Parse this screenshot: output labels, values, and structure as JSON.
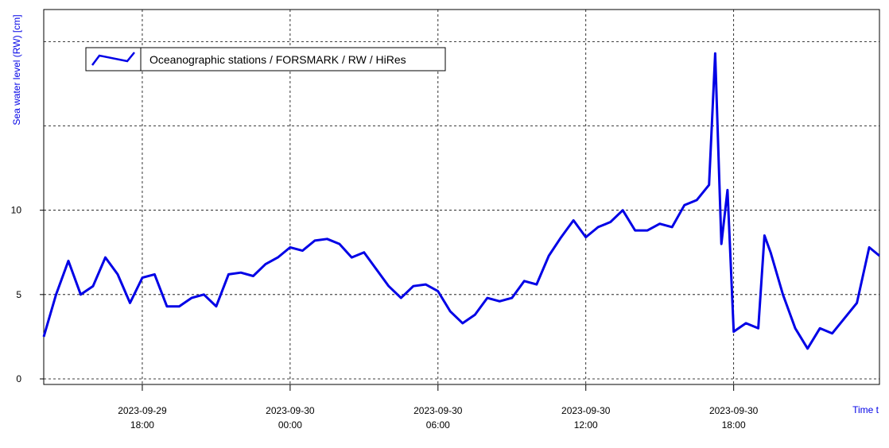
{
  "chart_data": {
    "type": "line",
    "y_label": "Sea water level (RW) [cm]",
    "x_label": "Time t",
    "x": [
      "2023-09-29 14:00",
      "2023-09-29 14:30",
      "2023-09-29 15:00",
      "2023-09-29 15:30",
      "2023-09-29 16:00",
      "2023-09-29 16:30",
      "2023-09-29 17:00",
      "2023-09-29 17:30",
      "2023-09-29 18:00",
      "2023-09-29 18:30",
      "2023-09-29 19:00",
      "2023-09-29 19:30",
      "2023-09-29 20:00",
      "2023-09-29 20:30",
      "2023-09-29 21:00",
      "2023-09-29 21:30",
      "2023-09-29 22:00",
      "2023-09-29 22:30",
      "2023-09-29 23:00",
      "2023-09-29 23:30",
      "2023-09-30 00:00",
      "2023-09-30 00:30",
      "2023-09-30 01:00",
      "2023-09-30 01:30",
      "2023-09-30 02:00",
      "2023-09-30 02:30",
      "2023-09-30 03:00",
      "2023-09-30 03:30",
      "2023-09-30 04:00",
      "2023-09-30 04:30",
      "2023-09-30 05:00",
      "2023-09-30 05:30",
      "2023-09-30 06:00",
      "2023-09-30 06:30",
      "2023-09-30 07:00",
      "2023-09-30 07:30",
      "2023-09-30 08:00",
      "2023-09-30 08:30",
      "2023-09-30 09:00",
      "2023-09-30 09:30",
      "2023-09-30 10:00",
      "2023-09-30 10:30",
      "2023-09-30 11:00",
      "2023-09-30 11:30",
      "2023-09-30 12:00",
      "2023-09-30 12:30",
      "2023-09-30 13:00",
      "2023-09-30 13:30",
      "2023-09-30 14:00",
      "2023-09-30 14:30",
      "2023-09-30 15:00",
      "2023-09-30 15:30",
      "2023-09-30 16:00",
      "2023-09-30 16:30",
      "2023-09-30 17:00",
      "2023-09-30 17:15",
      "2023-09-30 17:30",
      "2023-09-30 17:45",
      "2023-09-30 18:00",
      "2023-09-30 18:30",
      "2023-09-30 19:00",
      "2023-09-30 19:15",
      "2023-09-30 19:30",
      "2023-09-30 20:00",
      "2023-09-30 20:30",
      "2023-09-30 21:00",
      "2023-09-30 21:30",
      "2023-09-30 22:00",
      "2023-09-30 22:30",
      "2023-09-30 23:00",
      "2023-09-30 23:30",
      "2023-09-30 23:55"
    ],
    "series": [
      {
        "name": "Oceanographic stations / FORSMARK / RW / HiRes",
        "color": "#0000e6",
        "values": [
          2.5,
          5.0,
          7.0,
          5.0,
          5.5,
          7.2,
          6.2,
          4.5,
          6.0,
          6.2,
          4.3,
          4.3,
          4.8,
          5.0,
          4.3,
          6.2,
          6.3,
          6.1,
          6.8,
          7.2,
          7.8,
          7.6,
          8.2,
          8.3,
          8.0,
          7.2,
          7.5,
          6.5,
          5.5,
          4.8,
          5.5,
          5.6,
          5.2,
          4.0,
          3.3,
          3.8,
          4.8,
          4.6,
          4.8,
          5.8,
          5.6,
          7.3,
          8.4,
          9.4,
          8.4,
          9.0,
          9.3,
          10.0,
          8.8,
          8.8,
          9.2,
          9.0,
          10.3,
          10.6,
          11.5,
          19.3,
          8.0,
          11.2,
          2.8,
          3.3,
          3.0,
          8.5,
          7.5,
          5.0,
          3.0,
          1.8,
          3.0,
          2.7,
          3.6,
          4.5,
          7.8,
          7.3
        ]
      }
    ],
    "xlim": [
      "2023-09-29 14:00",
      "2023-09-30 23:55"
    ],
    "xticks": [
      {
        "value": "2023-09-29 18:00",
        "label": [
          "2023-09-29",
          "18:00"
        ]
      },
      {
        "value": "2023-09-30 00:00",
        "label": [
          "2023-09-30",
          "00:00"
        ]
      },
      {
        "value": "2023-09-30 06:00",
        "label": [
          "2023-09-30",
          "06:00"
        ]
      },
      {
        "value": "2023-09-30 12:00",
        "label": [
          "2023-09-30",
          "12:00"
        ]
      },
      {
        "value": "2023-09-30 18:00",
        "label": [
          "2023-09-30",
          "18:00"
        ]
      }
    ],
    "ylim": [
      -0.33,
      21.9
    ],
    "yticks": [
      0,
      5,
      10
    ],
    "ygrid": [
      0,
      5,
      10,
      15,
      20
    ],
    "grid": true
  }
}
